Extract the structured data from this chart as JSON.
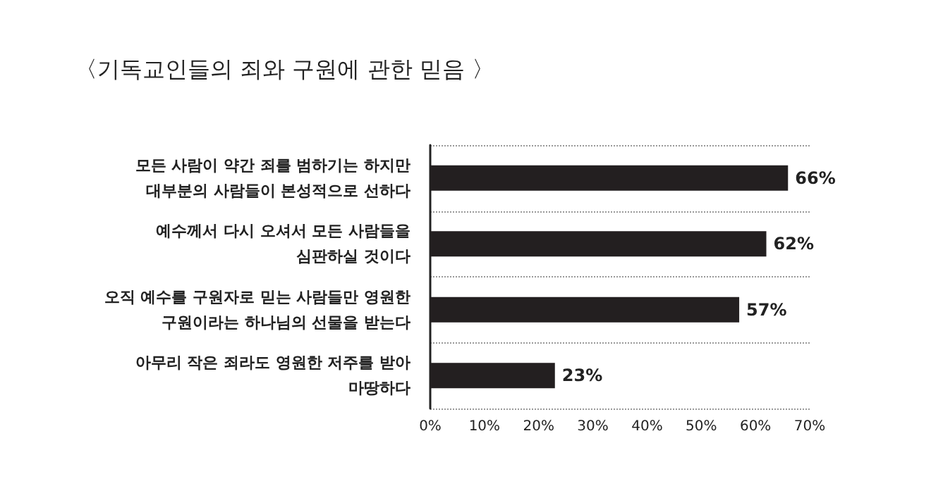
{
  "chart_data": {
    "type": "bar",
    "orientation": "horizontal",
    "title": "〈기독교인들의 죄와 구원에 관한 믿음 〉",
    "categories": [
      "모든 사람이 약간 죄를 범하기는 하지만\n대부분의 사람들이 본성적으로 선하다",
      "예수께서 다시 오셔서 모든 사람들을\n심판하실 것이다",
      "오직 예수를 구원자로 믿는 사람들만 영원한\n구원이라는 하나님의 선물을 받는다",
      "아무리 작은 죄라도 영원한 저주를 받아\n마땅하다"
    ],
    "values": [
      66,
      62,
      57,
      23
    ],
    "value_labels": [
      "66%",
      "62%",
      "57%",
      "23%"
    ],
    "color": "#231f20",
    "xlim": [
      0,
      70
    ],
    "xticks": [
      {
        "value": 0,
        "label": "0%"
      },
      {
        "value": 10,
        "label": "10%"
      },
      {
        "value": 20,
        "label": "20%"
      },
      {
        "value": 30,
        "label": "30%"
      },
      {
        "value": 40,
        "label": "40%"
      },
      {
        "value": 50,
        "label": "50%"
      },
      {
        "value": 60,
        "label": "60%"
      },
      {
        "value": 70,
        "label": "70%"
      }
    ],
    "grid": "y"
  }
}
